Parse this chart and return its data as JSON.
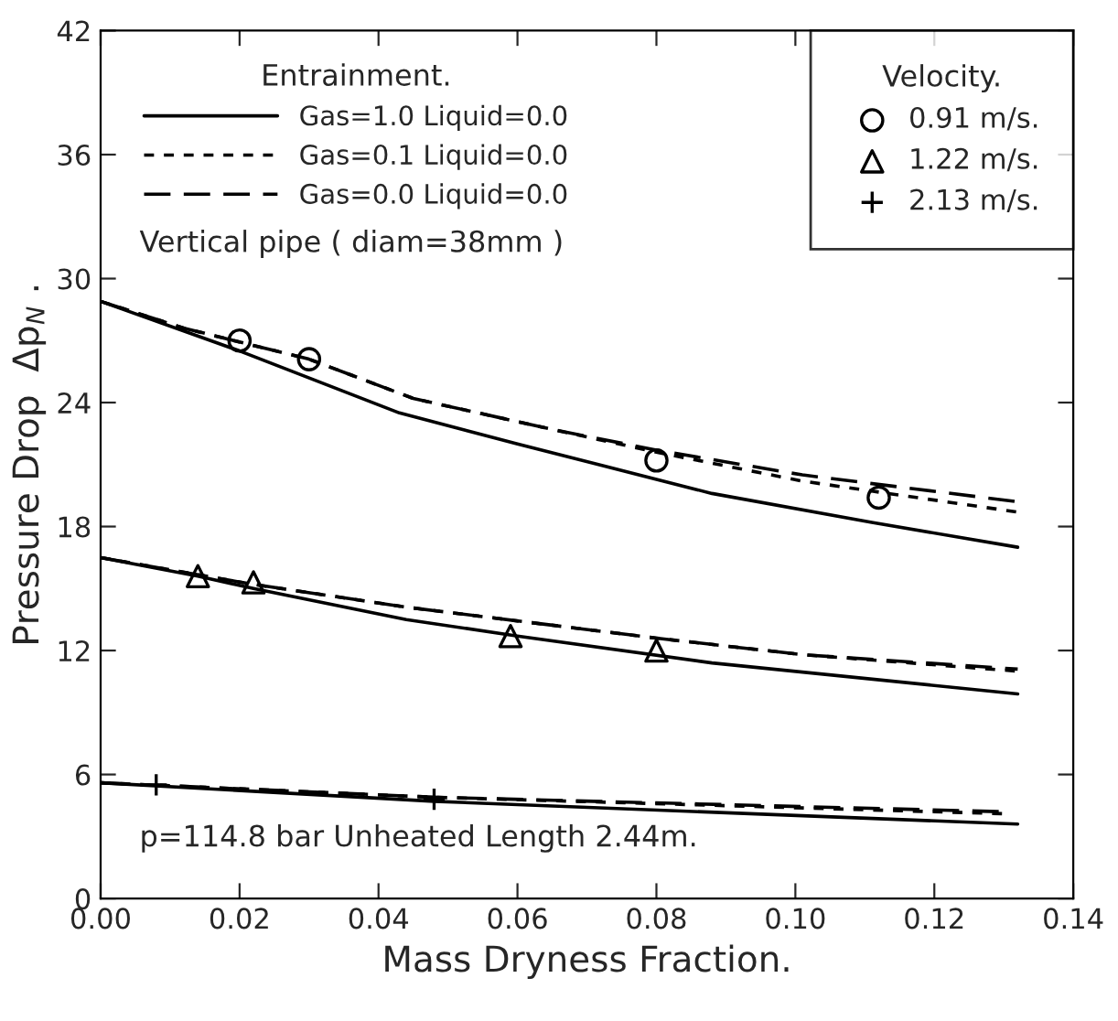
{
  "chart_data": {
    "type": "line",
    "xlabel": "Mass Dryness Fraction.",
    "ylabel": "Pressure Drop  Δp$_{N}$ .",
    "legend_title": "Entrainment.",
    "legend": "top left",
    "xlim": [
      0,
      0.14
    ],
    "ylim": [
      0,
      42
    ],
    "xticks": [
      {
        "value": 0,
        "label": "0.00"
      },
      {
        "value": 0.02,
        "label": "0.02"
      },
      {
        "value": 0.04,
        "label": "0.04"
      },
      {
        "value": 0.06,
        "label": "0.06"
      },
      {
        "value": 0.08,
        "label": "0.08"
      },
      {
        "value": 0.1,
        "label": "0.10"
      },
      {
        "value": 0.12,
        "label": "0.12"
      },
      {
        "value": 0.14,
        "label": "0.14"
      }
    ],
    "yticks": [
      0,
      6,
      12,
      18,
      24,
      30,
      36,
      42
    ],
    "grid": false,
    "annotations": [
      "Velocity.",
      "Vertical pipe ( diam=38mm )",
      "p=114.8 bar Unheated Length 2.44m."
    ],
    "series": [
      {
        "name": "Gas=1.0 Liquid=0.0",
        "line_style": "solid",
        "color": "#000000",
        "x": [
          0,
          0.02,
          0.043,
          0.06,
          0.088,
          0.111,
          0.132
        ],
        "values": [
          28.9,
          26.5,
          23.5,
          22.0,
          19.6,
          18.2,
          17.0
        ]
      },
      {
        "name": "Gas=0.1 Liquid=0.0",
        "line_style": "dotted",
        "color": "#000000",
        "x": [
          0,
          0.012,
          0.03,
          0.045,
          0.065,
          0.08,
          0.101,
          0.132
        ],
        "values": [
          28.9,
          27.6,
          26.1,
          24.2,
          22.7,
          21.6,
          20.2,
          18.7
        ]
      },
      {
        "name": "Gas=0.0 Liquid=0.0",
        "line_style": "dashed",
        "color": "#000000",
        "x": [
          0,
          0.012,
          0.03,
          0.045,
          0.065,
          0.08,
          0.101,
          0.132
        ],
        "values": [
          28.9,
          27.6,
          26.1,
          24.2,
          22.7,
          21.7,
          20.5,
          19.2
        ]
      },
      {
        "line_style": "solid",
        "color": "#000000",
        "x": [
          0,
          0.014,
          0.022,
          0.044,
          0.06,
          0.088,
          0.132
        ],
        "values": [
          16.5,
          15.6,
          15.0,
          13.5,
          12.7,
          11.4,
          9.9
        ]
      },
      {
        "line_style": "dotted",
        "color": "#000000",
        "x": [
          0,
          0.022,
          0.044,
          0.08,
          0.101,
          0.132
        ],
        "values": [
          16.5,
          15.2,
          14.1,
          12.6,
          11.8,
          11.0
        ]
      },
      {
        "line_style": "dashed",
        "color": "#000000",
        "x": [
          0,
          0.022,
          0.044,
          0.08,
          0.101,
          0.132
        ],
        "values": [
          16.5,
          15.2,
          14.1,
          12.6,
          11.8,
          11.1
        ]
      },
      {
        "line_style": "solid",
        "color": "#000000",
        "x": [
          0,
          0.048,
          0.132
        ],
        "values": [
          5.6,
          4.7,
          3.6
        ]
      },
      {
        "line_style": "dotted",
        "color": "#000000",
        "x": [
          0,
          0.048,
          0.13
        ],
        "values": [
          5.6,
          4.9,
          4.1
        ]
      },
      {
        "line_style": "dashed",
        "color": "#000000",
        "x": [
          0,
          0.048,
          0.13
        ],
        "values": [
          5.6,
          4.9,
          4.2
        ]
      },
      {
        "name": "0.91 m/s.",
        "type": "scatter",
        "marker": "circle",
        "color": "#000000",
        "x": [
          0.02,
          0.03,
          0.08,
          0.112
        ],
        "values": [
          27.0,
          26.1,
          21.2,
          19.4
        ]
      },
      {
        "name": "1.22 m/s.",
        "type": "scatter",
        "marker": "triangle",
        "color": "#000000",
        "x": [
          0.014,
          0.022,
          0.059,
          0.08
        ],
        "values": [
          15.6,
          15.3,
          12.7,
          12.0
        ]
      },
      {
        "name": "2.13 m/s.",
        "type": "scatter",
        "marker": "cross",
        "color": "#000000",
        "x": [
          0.008,
          0.048
        ],
        "values": [
          5.5,
          4.8
        ]
      }
    ]
  }
}
